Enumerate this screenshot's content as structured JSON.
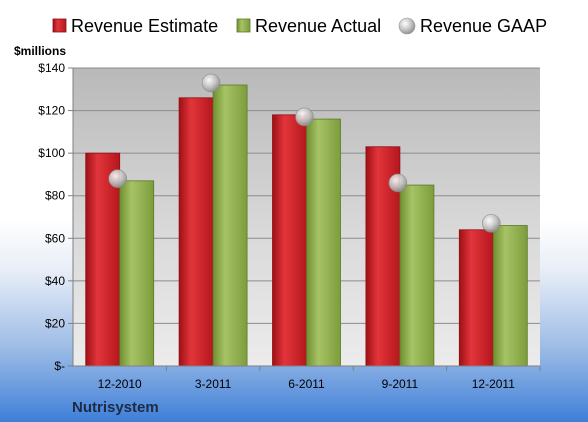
{
  "company": "Nutrisystem",
  "chart_data": {
    "type": "bar",
    "title": "",
    "ylabel": "$millions",
    "xlabel": "",
    "ylim": [
      0,
      140
    ],
    "y_ticks": [
      {
        "value": 0,
        "label": "$-"
      },
      {
        "value": 20,
        "label": "$20"
      },
      {
        "value": 40,
        "label": "$40"
      },
      {
        "value": 60,
        "label": "$60"
      },
      {
        "value": 80,
        "label": "$80"
      },
      {
        "value": 100,
        "label": "$100"
      },
      {
        "value": 120,
        "label": "$120"
      },
      {
        "value": 140,
        "label": "$140"
      }
    ],
    "grid": true,
    "legend_position": "top",
    "categories": [
      "12-2010",
      "3-2011",
      "6-2011",
      "9-2011",
      "12-2011"
    ],
    "series": [
      {
        "name": "Revenue Estimate",
        "kind": "bar",
        "color": "#cc1f27",
        "values": [
          100,
          126,
          118,
          103,
          64
        ]
      },
      {
        "name": "Revenue Actual",
        "kind": "bar",
        "color": "#8fb04b",
        "values": [
          87,
          132,
          116,
          85,
          66
        ]
      },
      {
        "name": "Revenue GAAP",
        "kind": "marker",
        "color": "#b8b8b8",
        "values": [
          88,
          133,
          117,
          86,
          67
        ]
      }
    ]
  }
}
